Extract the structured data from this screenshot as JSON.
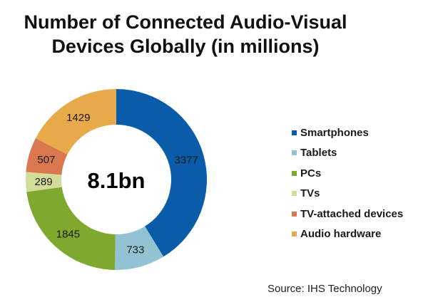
{
  "chart_data": {
    "type": "pie",
    "subtype": "donut",
    "title": "Number of Connected Audio-Visual Devices Globally (in millions)",
    "title_lines": [
      "Number of Connected Audio-Visual",
      "Devices Globally (in millions)"
    ],
    "center_label": "8.1bn",
    "slices": [
      {
        "name": "Smartphones",
        "value": 3377,
        "label": "3377",
        "color": "#0b5ca8"
      },
      {
        "name": "Tablets",
        "value": 733,
        "label": "733",
        "color": "#93c3d2"
      },
      {
        "name": "PCs",
        "value": 1845,
        "label": "1845",
        "color": "#7ea82e"
      },
      {
        "name": "TVs",
        "value": 289,
        "label": "289",
        "color": "#d3dd98"
      },
      {
        "name": "TV-attached devices",
        "value": 507,
        "label": "507",
        "color": "#d9774e"
      },
      {
        "name": "Audio hardware",
        "value": 1429,
        "label": "1429",
        "color": "#e8a94a"
      }
    ],
    "legend_position": "right",
    "source": "Source: IHS Technology"
  }
}
